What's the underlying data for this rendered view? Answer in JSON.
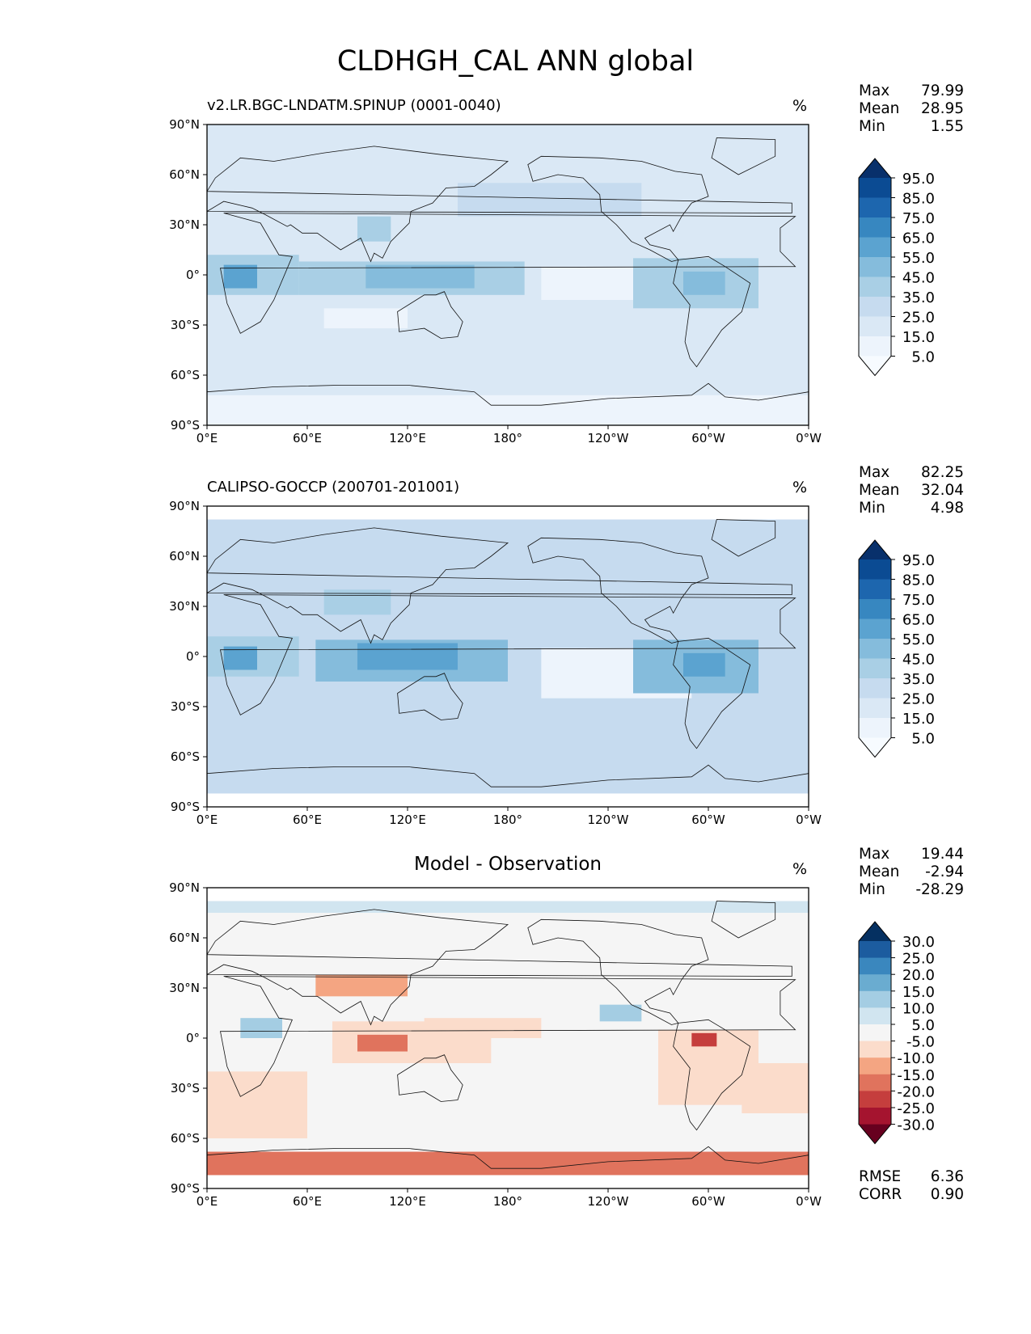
{
  "figure": {
    "title": "CLDHGH_CAL ANN global"
  },
  "chart_data": [
    {
      "type": "heatmap",
      "title": "v2.LR.BGC-LNDATM.SPINUP (0001-0040)",
      "units": "%",
      "stats": {
        "max_label": "Max",
        "max": "79.99",
        "mean_label": "Mean",
        "mean": "28.95",
        "min_label": "Min",
        "min": "1.55"
      },
      "x_ticks": [
        "0°E",
        "60°E",
        "120°E",
        "180°",
        "120°W",
        "60°W",
        "0°W"
      ],
      "y_ticks": [
        "90°N",
        "60°N",
        "30°N",
        "0°",
        "30°S",
        "60°S",
        "90°S"
      ],
      "xlim": [
        0,
        360
      ],
      "ylim": [
        -90,
        90
      ],
      "colorbar_levels": [
        "95.0",
        "85.0",
        "75.0",
        "65.0",
        "55.0",
        "45.0",
        "35.0",
        "25.0",
        "15.0",
        "5.0"
      ],
      "colorbar_colors": [
        "#08306b",
        "#0b4b93",
        "#1d66ae",
        "#3787c0",
        "#5ba3d0",
        "#85bcdc",
        "#a9cfe5",
        "#c6dbef",
        "#dae8f5",
        "#edf4fc",
        "#f7fbff"
      ],
      "regions": [
        {
          "lon": [
            0,
            360
          ],
          "lat": [
            -90,
            90
          ],
          "value": 22
        },
        {
          "lon": [
            0,
            360
          ],
          "lat": [
            -90,
            -72
          ],
          "value": 8
        },
        {
          "lon": [
            200,
            300
          ],
          "lat": [
            -15,
            5
          ],
          "value": 10
        },
        {
          "lon": [
            70,
            120
          ],
          "lat": [
            -32,
            -20
          ],
          "value": 12
        },
        {
          "lon": [
            0,
            55
          ],
          "lat": [
            -12,
            12
          ],
          "value": 40
        },
        {
          "lon": [
            10,
            30
          ],
          "lat": [
            -8,
            6
          ],
          "value": 60
        },
        {
          "lon": [
            55,
            190
          ],
          "lat": [
            -12,
            8
          ],
          "value": 42
        },
        {
          "lon": [
            95,
            160
          ],
          "lat": [
            -8,
            6
          ],
          "value": 55
        },
        {
          "lon": [
            90,
            110
          ],
          "lat": [
            20,
            35
          ],
          "value": 40
        },
        {
          "lon": [
            150,
            260
          ],
          "lat": [
            35,
            55
          ],
          "value": 32
        },
        {
          "lon": [
            255,
            330
          ],
          "lat": [
            -20,
            10
          ],
          "value": 42
        },
        {
          "lon": [
            285,
            310
          ],
          "lat": [
            -12,
            2
          ],
          "value": 55
        }
      ]
    },
    {
      "type": "heatmap",
      "title": "CALIPSO-GOCCP (200701-201001)",
      "units": "%",
      "stats": {
        "max_label": "Max",
        "max": "82.25",
        "mean_label": "Mean",
        "mean": "32.04",
        "min_label": "Min",
        "min": "4.98"
      },
      "x_ticks": [
        "0°E",
        "60°E",
        "120°E",
        "180°",
        "120°W",
        "60°W",
        "0°W"
      ],
      "y_ticks": [
        "90°N",
        "60°N",
        "30°N",
        "0°",
        "30°S",
        "60°S",
        "90°S"
      ],
      "xlim": [
        0,
        360
      ],
      "ylim": [
        -90,
        90
      ],
      "data_lat_range": [
        -82,
        82
      ],
      "colorbar_levels": [
        "95.0",
        "85.0",
        "75.0",
        "65.0",
        "55.0",
        "45.0",
        "35.0",
        "25.0",
        "15.0",
        "5.0"
      ],
      "colorbar_colors": [
        "#08306b",
        "#0b4b93",
        "#1d66ae",
        "#3787c0",
        "#5ba3d0",
        "#85bcdc",
        "#a9cfe5",
        "#c6dbef",
        "#dae8f5",
        "#edf4fc",
        "#f7fbff"
      ],
      "regions": [
        {
          "lon": [
            0,
            360
          ],
          "lat": [
            -82,
            82
          ],
          "value": 28
        },
        {
          "lon": [
            200,
            290
          ],
          "lat": [
            -25,
            5
          ],
          "value": 12
        },
        {
          "lon": [
            0,
            55
          ],
          "lat": [
            -12,
            12
          ],
          "value": 45
        },
        {
          "lon": [
            10,
            30
          ],
          "lat": [
            -8,
            6
          ],
          "value": 62
        },
        {
          "lon": [
            65,
            180
          ],
          "lat": [
            -15,
            10
          ],
          "value": 48
        },
        {
          "lon": [
            90,
            150
          ],
          "lat": [
            -8,
            8
          ],
          "value": 62
        },
        {
          "lon": [
            70,
            110
          ],
          "lat": [
            25,
            40
          ],
          "value": 45
        },
        {
          "lon": [
            255,
            330
          ],
          "lat": [
            -22,
            10
          ],
          "value": 48
        },
        {
          "lon": [
            285,
            310
          ],
          "lat": [
            -12,
            2
          ],
          "value": 62
        },
        {
          "lon": [
            0,
            360
          ],
          "lat": [
            -65,
            -45
          ],
          "value": 35
        }
      ]
    },
    {
      "type": "heatmap",
      "title": "Model - Observation",
      "units": "%",
      "stats": {
        "max_label": "Max",
        "max": "19.44",
        "mean_label": "Mean",
        "mean": "-2.94",
        "min_label": "Min",
        "min": "-28.29"
      },
      "metrics": {
        "rmse_label": "RMSE",
        "rmse": "6.36",
        "corr_label": "CORR",
        "corr": "0.90"
      },
      "x_ticks": [
        "0°E",
        "60°E",
        "120°E",
        "180°",
        "120°W",
        "60°W",
        "0°W"
      ],
      "y_ticks": [
        "90°N",
        "60°N",
        "30°N",
        "0°",
        "30°S",
        "60°S",
        "90°S"
      ],
      "xlim": [
        0,
        360
      ],
      "ylim": [
        -90,
        90
      ],
      "data_lat_range": [
        -82,
        82
      ],
      "colorbar_levels": [
        "30.0",
        "25.0",
        "20.0",
        "15.0",
        "10.0",
        "5.0",
        "-5.0",
        "-10.0",
        "-15.0",
        "-20.0",
        "-25.0",
        "-30.0"
      ],
      "colorbar_colors": [
        "#053061",
        "#1c5c9f",
        "#3a87be",
        "#6aacd0",
        "#a4cde3",
        "#d1e5f0",
        "#f5f5f5",
        "#fbdccb",
        "#f4a582",
        "#e0735d",
        "#c53e3d",
        "#a5142f",
        "#67001f"
      ],
      "regions": [
        {
          "lon": [
            0,
            360
          ],
          "lat": [
            -82,
            82
          ],
          "value": 0
        },
        {
          "lon": [
            0,
            360
          ],
          "lat": [
            -82,
            -68
          ],
          "value": -17
        },
        {
          "lon": [
            0,
            60
          ],
          "lat": [
            -60,
            -20
          ],
          "value": -7
        },
        {
          "lon": [
            65,
            120
          ],
          "lat": [
            25,
            38
          ],
          "value": -12
        },
        {
          "lon": [
            75,
            170
          ],
          "lat": [
            -15,
            10
          ],
          "value": -8
        },
        {
          "lon": [
            90,
            120
          ],
          "lat": [
            -8,
            2
          ],
          "value": -17
        },
        {
          "lon": [
            130,
            200
          ],
          "lat": [
            0,
            12
          ],
          "value": -8
        },
        {
          "lon": [
            270,
            330
          ],
          "lat": [
            -40,
            5
          ],
          "value": -8
        },
        {
          "lon": [
            290,
            305
          ],
          "lat": [
            -5,
            3
          ],
          "value": -22
        },
        {
          "lon": [
            320,
            360
          ],
          "lat": [
            -45,
            -15
          ],
          "value": -8
        },
        {
          "lon": [
            20,
            45
          ],
          "lat": [
            0,
            12
          ],
          "value": 12
        },
        {
          "lon": [
            235,
            260
          ],
          "lat": [
            10,
            20
          ],
          "value": 12
        },
        {
          "lon": [
            0,
            360
          ],
          "lat": [
            75,
            82
          ],
          "value": 7
        }
      ]
    }
  ]
}
